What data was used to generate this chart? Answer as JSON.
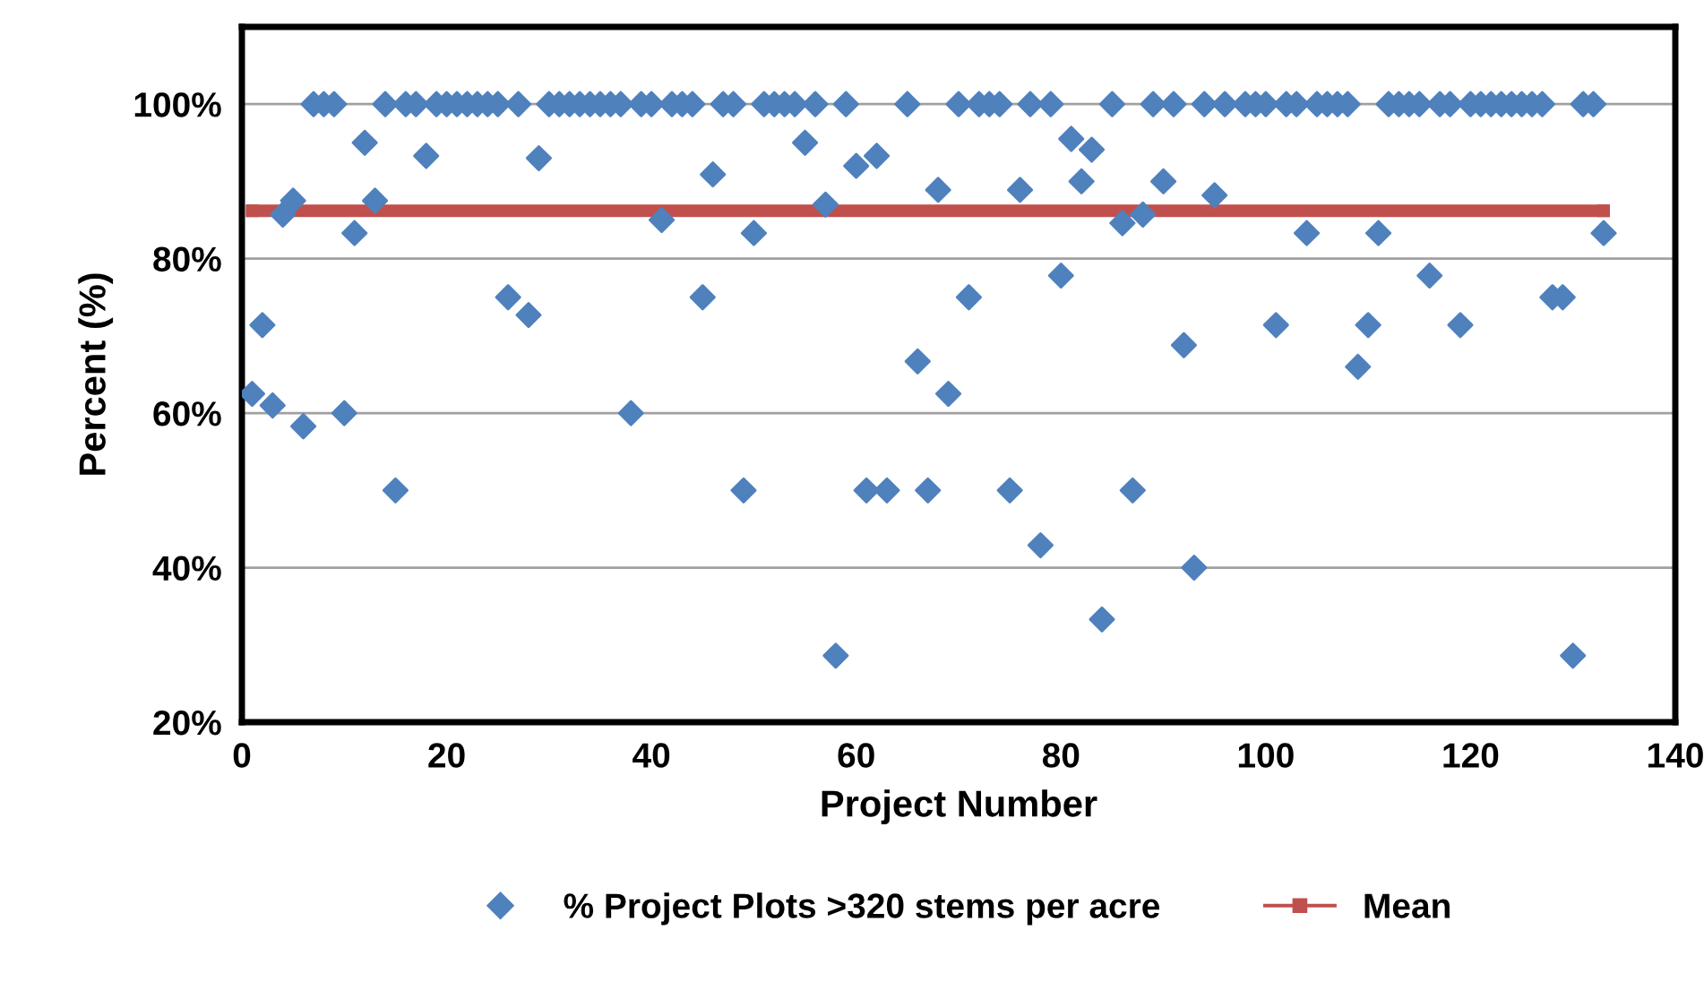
{
  "chart_data": {
    "type": "scatter",
    "xlabel": "Project Number",
    "ylabel": "Percent (%)",
    "xlim": [
      0,
      140
    ],
    "xticks": [
      0,
      20,
      40,
      60,
      80,
      100,
      120,
      140
    ],
    "ylim": [
      20,
      110
    ],
    "yticks": [
      {
        "value": 20,
        "label": "20%"
      },
      {
        "value": 40,
        "label": "40%"
      },
      {
        "value": 60,
        "label": "60%"
      },
      {
        "value": 80,
        "label": "80%"
      },
      {
        "value": 100,
        "label": "100%"
      }
    ],
    "grid": "y",
    "legend": "bottom",
    "series": [
      {
        "name": "% Project Plots >320 stems per acre",
        "marker": "diamond",
        "color": "#4f81bd",
        "x": [
          1,
          2,
          3,
          4,
          5,
          6,
          7,
          8,
          9,
          10,
          11,
          12,
          13,
          14,
          15,
          16,
          17,
          18,
          19,
          20,
          21,
          22,
          23,
          24,
          25,
          26,
          27,
          28,
          29,
          30,
          31,
          32,
          33,
          34,
          35,
          36,
          37,
          38,
          39,
          40,
          41,
          42,
          43,
          44,
          45,
          46,
          47,
          48,
          49,
          50,
          51,
          52,
          53,
          54,
          55,
          56,
          57,
          58,
          59,
          60,
          61,
          62,
          63,
          65,
          66,
          67,
          68,
          69,
          70,
          71,
          72,
          73,
          74,
          75,
          76,
          77,
          78,
          79,
          80,
          81,
          82,
          83,
          84,
          85,
          86,
          87,
          88,
          89,
          90,
          91,
          92,
          93,
          94,
          95,
          96,
          98,
          99,
          100,
          101,
          102,
          103,
          104,
          105,
          106,
          107,
          108,
          109,
          110,
          111,
          112,
          113,
          114,
          115,
          116,
          117,
          118,
          119,
          120,
          121,
          122,
          123,
          124,
          125,
          126,
          127,
          128,
          129,
          130,
          131,
          132,
          133
        ],
        "values": [
          62.5,
          71.4,
          61,
          85.7,
          87.5,
          58.3,
          100,
          100,
          100,
          60,
          83.3,
          95,
          87.5,
          100,
          50,
          100,
          100,
          93.3,
          100,
          100,
          100,
          100,
          100,
          100,
          100,
          75,
          100,
          72.7,
          93,
          100,
          100,
          100,
          100,
          100,
          100,
          100,
          100,
          60,
          100,
          100,
          85,
          100,
          100,
          100,
          75,
          90.9,
          100,
          100,
          50,
          83.3,
          100,
          100,
          100,
          100,
          95,
          100,
          87,
          28.6,
          100,
          92,
          50,
          93.3,
          50,
          100,
          66.7,
          50,
          88.9,
          62.5,
          100,
          75,
          100,
          100,
          100,
          50,
          88.9,
          100,
          42.9,
          100,
          77.8,
          95.5,
          90,
          94.1,
          33.3,
          100,
          84.6,
          50,
          85.7,
          100,
          90,
          100,
          68.8,
          40,
          100,
          88.2,
          100,
          100,
          100,
          100,
          71.4,
          100,
          100,
          83.3,
          100,
          100,
          100,
          100,
          66,
          71.4,
          83.3,
          100,
          100,
          100,
          100,
          77.8,
          100,
          100,
          71.4,
          100,
          100,
          100,
          100,
          100,
          100,
          100,
          100,
          75,
          75,
          28.6,
          100,
          100,
          83.3
        ]
      },
      {
        "name": "Mean",
        "type": "line",
        "marker": "square",
        "line_style": "solid",
        "color": "#c0504d",
        "x": [
          1,
          133
        ],
        "values": [
          86.2,
          86.2
        ]
      }
    ]
  }
}
